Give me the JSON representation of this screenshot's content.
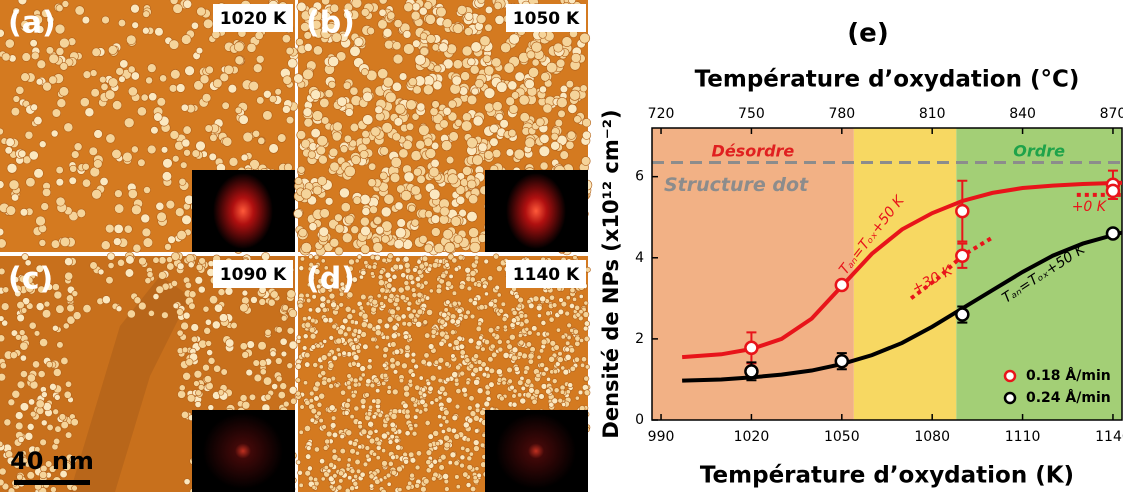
{
  "panels": [
    {
      "label": "(a)",
      "temperature": "1020 K"
    },
    {
      "label": "(b)",
      "temperature": "1050 K"
    },
    {
      "label": "(c)",
      "temperature": "1090 K"
    },
    {
      "label": "(d)",
      "temperature": "1140 K"
    }
  ],
  "scale_bar": "40 nm",
  "chart_data": {
    "type": "scatter",
    "title": "(e)",
    "x_label": "Température d’oxydation (K)",
    "x2_label": "Température d’oxydation (°C)",
    "y_label": "Densité de NPs (x10¹² cm⁻²)",
    "xlim": [
      987,
      1143
    ],
    "xticks": [
      990,
      1020,
      1050,
      1080,
      1110,
      1140
    ],
    "x2lim": [
      717,
      873
    ],
    "x2ticks": [
      720,
      750,
      780,
      810,
      840,
      870
    ],
    "ylim": [
      0,
      7.2
    ],
    "yticks": [
      0,
      2,
      4,
      6
    ],
    "regions": [
      {
        "name": "Désordre",
        "xlim": [
          987,
          1054
        ],
        "color": "#f2b185",
        "label_color": "#e02020"
      },
      {
        "xlim": [
          1054,
          1088
        ],
        "color": "#f7d862"
      },
      {
        "name": "Ordre",
        "xlim": [
          1088,
          1143
        ],
        "color": "#a3cf76",
        "label_color": "#1fa34a"
      }
    ],
    "hline": {
      "value": 6.35,
      "label": "Structure dot",
      "color": "#8c8c8c"
    },
    "series": [
      {
        "name": "0.18 Å/min",
        "color": "#e8141a",
        "x": [
          1020,
          1050,
          1090,
          1090,
          1140,
          1140
        ],
        "values": [
          1.78,
          3.33,
          5.15,
          4.05,
          5.8,
          5.65
        ],
        "errors": [
          0.38,
          null,
          0.75,
          0.3,
          0.35,
          null
        ]
      },
      {
        "name": "0.24 Å/min",
        "color": "#000000",
        "x": [
          1020,
          1050,
          1090,
          1140
        ],
        "values": [
          1.2,
          1.45,
          2.6,
          4.6
        ],
        "errors": [
          0.22,
          0.2,
          0.2,
          null
        ]
      }
    ],
    "fits": [
      {
        "label": "Tₐₙ=Tₒₓ+50 K",
        "color": "#e8141a",
        "x": [
          997,
          1010,
          1020,
          1030,
          1040,
          1050,
          1060,
          1070,
          1080,
          1090,
          1100,
          1110,
          1120,
          1130,
          1143
        ],
        "values": [
          1.55,
          1.62,
          1.75,
          2.0,
          2.5,
          3.3,
          4.1,
          4.7,
          5.1,
          5.4,
          5.6,
          5.72,
          5.78,
          5.82,
          5.85
        ]
      },
      {
        "label": "Tₐₙ=Tₒₓ+50 K",
        "color": "#000000",
        "x": [
          997,
          1010,
          1020,
          1030,
          1040,
          1050,
          1060,
          1070,
          1080,
          1090,
          1100,
          1110,
          1120,
          1130,
          1143
        ],
        "values": [
          0.97,
          1.0,
          1.05,
          1.12,
          1.22,
          1.38,
          1.6,
          1.9,
          2.3,
          2.75,
          3.2,
          3.65,
          4.05,
          4.35,
          4.62
        ]
      }
    ],
    "dotted": [
      {
        "label": "+30 K",
        "color": "#e8141a",
        "x": [
          1073,
          1082,
          1090,
          1100
        ],
        "values": [
          3.0,
          3.5,
          4.05,
          4.5
        ]
      },
      {
        "label": "+0 K",
        "color": "#e8141a",
        "x": [
          1128,
          1143
        ],
        "values": [
          5.55,
          5.55
        ]
      }
    ],
    "legend": "lower right"
  }
}
